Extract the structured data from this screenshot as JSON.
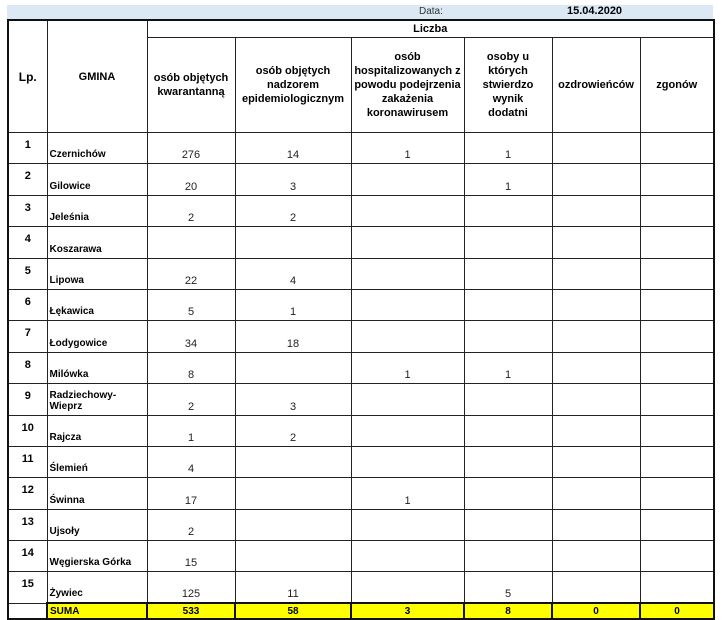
{
  "date_label": "Data:",
  "date_value": "15.04.2020",
  "headers": {
    "lp": "Lp.",
    "gmina": "GMINA",
    "group": "Liczba",
    "cols": [
      "osób objętych kwarantanną",
      "osób objętych nadzorem epidemiologicznym",
      "osób hospitalizowanych z powodu podejrzenia zakażenia koronawirusem",
      "osoby u których stwierdzo wynik dodatni",
      "ozdrowieńców",
      "zgonów"
    ]
  },
  "rows": [
    {
      "lp": "1",
      "name": "Czernichów",
      "v": [
        "276",
        "14",
        "1",
        "1",
        "",
        ""
      ]
    },
    {
      "lp": "2",
      "name": "Gilowice",
      "v": [
        "20",
        "3",
        "",
        "1",
        "",
        ""
      ]
    },
    {
      "lp": "3",
      "name": "Jeleśnia",
      "v": [
        "2",
        "2",
        "",
        "",
        "",
        ""
      ]
    },
    {
      "lp": "4",
      "name": "Koszarawa",
      "v": [
        "",
        "",
        "",
        "",
        "",
        ""
      ]
    },
    {
      "lp": "5",
      "name": "Lipowa",
      "v": [
        "22",
        "4",
        "",
        "",
        "",
        ""
      ]
    },
    {
      "lp": "6",
      "name": "Łękawica",
      "v": [
        "5",
        "1",
        "",
        "",
        "",
        ""
      ]
    },
    {
      "lp": "7",
      "name": "Łodygowice",
      "v": [
        "34",
        "18",
        "",
        "",
        "",
        ""
      ]
    },
    {
      "lp": "8",
      "name": "Milówka",
      "v": [
        "8",
        "",
        "1",
        "1",
        "",
        ""
      ]
    },
    {
      "lp": "9",
      "name": "Radziechowy-Wieprz",
      "v": [
        "2",
        "3",
        "",
        "",
        "",
        ""
      ]
    },
    {
      "lp": "10",
      "name": "Rajcza",
      "v": [
        "1",
        "2",
        "",
        "",
        "",
        ""
      ]
    },
    {
      "lp": "11",
      "name": "Ślemień",
      "v": [
        "4",
        "",
        "",
        "",
        "",
        ""
      ]
    },
    {
      "lp": "12",
      "name": "Świnna",
      "v": [
        "17",
        "",
        "1",
        "",
        "",
        ""
      ]
    },
    {
      "lp": "13",
      "name": "Ujsoły",
      "v": [
        "2",
        "",
        "",
        "",
        "",
        ""
      ]
    },
    {
      "lp": "14",
      "name": "Węgierska Górka",
      "v": [
        "15",
        "",
        "",
        "",
        "",
        ""
      ]
    },
    {
      "lp": "15",
      "name": "Żywiec",
      "v": [
        "125",
        "11",
        "",
        "5",
        "",
        ""
      ]
    }
  ],
  "sum": {
    "label": "SUMA",
    "v": [
      "533",
      "58",
      "3",
      "8",
      "0",
      "0"
    ]
  },
  "colors": {
    "header_band": "#dce9f5",
    "sum_highlight": "#ffff00"
  }
}
